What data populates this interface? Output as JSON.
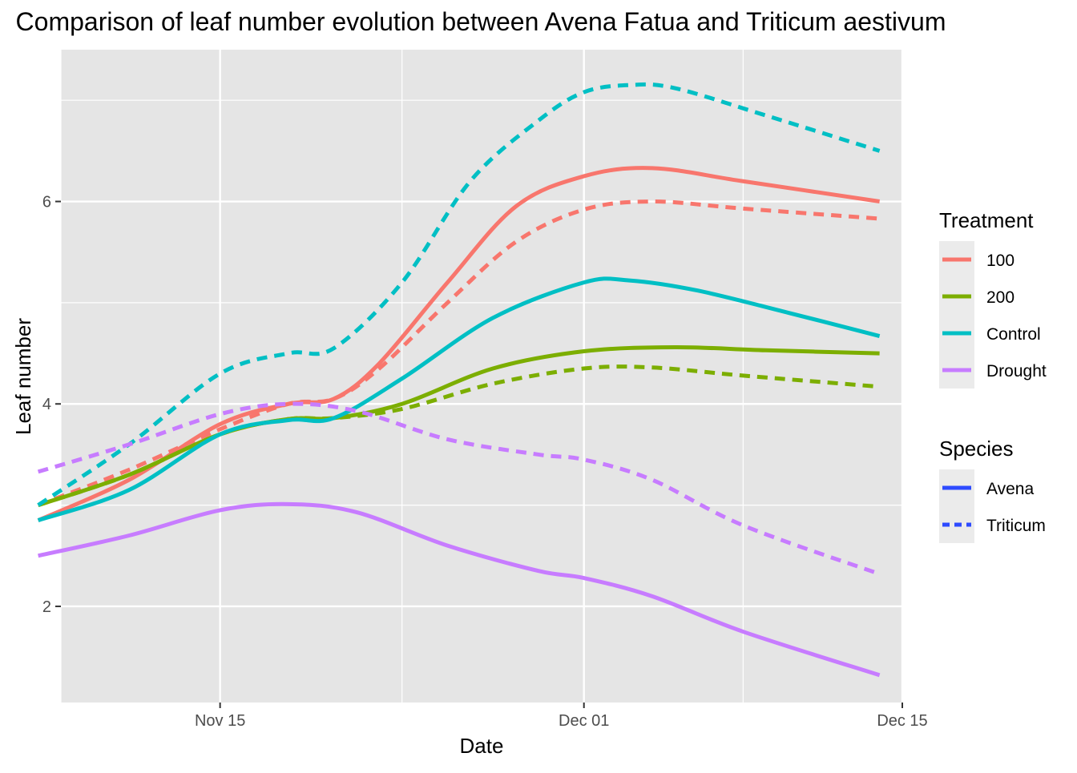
{
  "chart_data": {
    "type": "line",
    "title": "Comparison of leaf number evolution between Avena Fatua and Triticum aestivum",
    "xlabel": "Date",
    "ylabel": "Leaf number",
    "x_axis": {
      "type": "date",
      "range": [
        "2023-11-08",
        "2023-12-15"
      ],
      "ticks": [
        {
          "date": "2023-11-15",
          "label": "Nov 15"
        },
        {
          "date": "2023-12-01",
          "label": "Dec 01"
        },
        {
          "date": "2023-12-15",
          "label": "Dec 15"
        }
      ],
      "minor_gridlines": [
        "2023-11-08",
        "2023-11-23",
        "2023-12-08"
      ]
    },
    "y_axis": {
      "range": [
        1.05,
        7.5
      ],
      "ticks": [
        2,
        4,
        6
      ],
      "minor_gridlines": [
        3,
        5,
        7
      ]
    },
    "grid": true,
    "background": "#e5e5e5",
    "legend_position": "right",
    "legends": [
      {
        "title": "Treatment",
        "items": [
          {
            "label": "100",
            "color": "#F8766D"
          },
          {
            "label": "200",
            "color": "#7CAE00"
          },
          {
            "label": "Control",
            "color": "#00BFC4"
          },
          {
            "label": "Drought",
            "color": "#C77CFF"
          }
        ]
      },
      {
        "title": "Species",
        "items": [
          {
            "label": "Avena",
            "linetype": "solid",
            "color": "#2E4BFF"
          },
          {
            "label": "Triticum",
            "linetype": "dashed",
            "color": "#2E4BFF"
          }
        ]
      }
    ],
    "series": [
      {
        "treatment": "100",
        "species": "Avena",
        "color": "#F8766D",
        "dash": false,
        "points": [
          [
            "2023-11-07",
            2.85
          ],
          [
            "2023-11-11",
            3.25
          ],
          [
            "2023-11-15",
            3.8
          ],
          [
            "2023-11-18",
            4.0
          ],
          [
            "2023-11-20",
            4.05
          ],
          [
            "2023-11-22",
            4.4
          ],
          [
            "2023-11-25",
            5.2
          ],
          [
            "2023-11-28",
            5.95
          ],
          [
            "2023-12-01",
            6.25
          ],
          [
            "2023-12-04",
            6.33
          ],
          [
            "2023-12-08",
            6.2
          ],
          [
            "2023-12-14",
            6.0
          ]
        ]
      },
      {
        "treatment": "100",
        "species": "Triticum",
        "color": "#F8766D",
        "dash": true,
        "points": [
          [
            "2023-11-07",
            3.0
          ],
          [
            "2023-11-11",
            3.35
          ],
          [
            "2023-11-15",
            3.75
          ],
          [
            "2023-11-18",
            4.0
          ],
          [
            "2023-11-20",
            4.05
          ],
          [
            "2023-11-22",
            4.35
          ],
          [
            "2023-11-25",
            5.0
          ],
          [
            "2023-11-28",
            5.6
          ],
          [
            "2023-12-01",
            5.92
          ],
          [
            "2023-12-04",
            6.0
          ],
          [
            "2023-12-08",
            5.93
          ],
          [
            "2023-12-14",
            5.83
          ]
        ]
      },
      {
        "treatment": "200",
        "species": "Avena",
        "color": "#7CAE00",
        "dash": false,
        "points": [
          [
            "2023-11-07",
            3.0
          ],
          [
            "2023-11-11",
            3.3
          ],
          [
            "2023-11-15",
            3.7
          ],
          [
            "2023-11-18",
            3.85
          ],
          [
            "2023-11-20",
            3.86
          ],
          [
            "2023-11-23",
            4.0
          ],
          [
            "2023-11-27",
            4.35
          ],
          [
            "2023-12-01",
            4.52
          ],
          [
            "2023-12-05",
            4.56
          ],
          [
            "2023-12-09",
            4.53
          ],
          [
            "2023-12-14",
            4.5
          ]
        ]
      },
      {
        "treatment": "200",
        "species": "Triticum",
        "color": "#7CAE00",
        "dash": true,
        "points": [
          [
            "2023-11-07",
            3.0
          ],
          [
            "2023-11-11",
            3.3
          ],
          [
            "2023-11-15",
            3.7
          ],
          [
            "2023-11-18",
            3.85
          ],
          [
            "2023-11-20",
            3.86
          ],
          [
            "2023-11-23",
            3.95
          ],
          [
            "2023-11-27",
            4.2
          ],
          [
            "2023-12-01",
            4.35
          ],
          [
            "2023-12-04",
            4.36
          ],
          [
            "2023-12-08",
            4.28
          ],
          [
            "2023-12-14",
            4.17
          ]
        ]
      },
      {
        "treatment": "Control",
        "species": "Avena",
        "color": "#00BFC4",
        "dash": false,
        "points": [
          [
            "2023-11-07",
            2.85
          ],
          [
            "2023-11-11",
            3.15
          ],
          [
            "2023-11-15",
            3.7
          ],
          [
            "2023-11-18",
            3.84
          ],
          [
            "2023-11-20",
            3.86
          ],
          [
            "2023-11-23",
            4.25
          ],
          [
            "2023-11-27",
            4.85
          ],
          [
            "2023-12-01",
            5.2
          ],
          [
            "2023-12-03",
            5.22
          ],
          [
            "2023-12-06",
            5.12
          ],
          [
            "2023-12-10",
            4.9
          ],
          [
            "2023-12-14",
            4.67
          ]
        ]
      },
      {
        "treatment": "Control",
        "species": "Triticum",
        "color": "#00BFC4",
        "dash": true,
        "points": [
          [
            "2023-11-07",
            3.0
          ],
          [
            "2023-11-11",
            3.6
          ],
          [
            "2023-11-15",
            4.3
          ],
          [
            "2023-11-18",
            4.5
          ],
          [
            "2023-11-20",
            4.55
          ],
          [
            "2023-11-23",
            5.2
          ],
          [
            "2023-11-26",
            6.2
          ],
          [
            "2023-11-29",
            6.8
          ],
          [
            "2023-12-01",
            7.08
          ],
          [
            "2023-12-03",
            7.15
          ],
          [
            "2023-12-05",
            7.12
          ],
          [
            "2023-12-09",
            6.85
          ],
          [
            "2023-12-14",
            6.5
          ]
        ]
      },
      {
        "treatment": "Drought",
        "species": "Avena",
        "color": "#C77CFF",
        "dash": false,
        "points": [
          [
            "2023-11-07",
            2.5
          ],
          [
            "2023-11-11",
            2.7
          ],
          [
            "2023-11-15",
            2.95
          ],
          [
            "2023-11-18",
            3.01
          ],
          [
            "2023-11-21",
            2.93
          ],
          [
            "2023-11-25",
            2.6
          ],
          [
            "2023-11-29",
            2.35
          ],
          [
            "2023-12-01",
            2.28
          ],
          [
            "2023-12-04",
            2.1
          ],
          [
            "2023-12-08",
            1.75
          ],
          [
            "2023-12-14",
            1.32
          ]
        ]
      },
      {
        "treatment": "Drought",
        "species": "Triticum",
        "color": "#C77CFF",
        "dash": true,
        "points": [
          [
            "2023-11-07",
            3.33
          ],
          [
            "2023-11-11",
            3.6
          ],
          [
            "2023-11-15",
            3.9
          ],
          [
            "2023-11-18",
            4.0
          ],
          [
            "2023-11-21",
            3.93
          ],
          [
            "2023-11-25",
            3.65
          ],
          [
            "2023-11-29",
            3.5
          ],
          [
            "2023-12-01",
            3.45
          ],
          [
            "2023-12-04",
            3.25
          ],
          [
            "2023-12-08",
            2.8
          ],
          [
            "2023-12-14",
            2.32
          ]
        ]
      }
    ]
  }
}
